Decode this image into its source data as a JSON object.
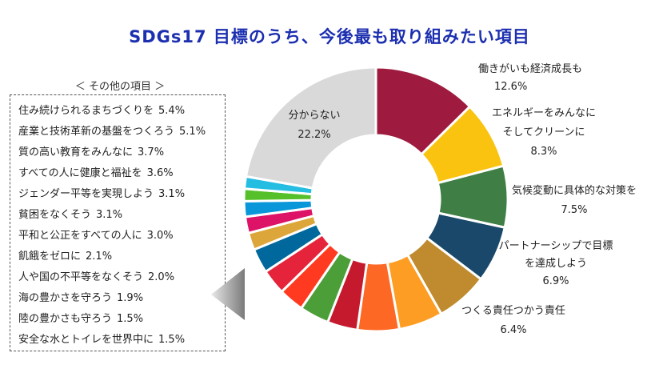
{
  "chart_data": {
    "type": "pie",
    "title": "SDGs17 目標のうち、今後最も取り組みたい項目",
    "slices": [
      {
        "label": "働きがいも経済成長も",
        "value": 12.6,
        "display": "12.6%",
        "color": "#9e1b3f"
      },
      {
        "label": "エネルギーをみんなに そしてクリーンに",
        "value": 8.3,
        "display": "8.3%",
        "color": "#f9c30f"
      },
      {
        "label": "気候変動に具体的な対策を",
        "value": 7.5,
        "display": "7.5%",
        "color": "#3f7e44"
      },
      {
        "label": "パートナーシップで目標を達成しよう",
        "value": 6.9,
        "display": "6.9%",
        "color": "#19486a"
      },
      {
        "label": "つくる責任つかう責任",
        "value": 6.4,
        "display": "6.4%",
        "color": "#bf8b2e"
      },
      {
        "label": "住み続けられるまちづくりを",
        "value": 5.4,
        "display": "5.4%",
        "color": "#fd9d24"
      },
      {
        "label": "産業と技術革新の基盤をつくろう",
        "value": 5.1,
        "display": "5.1%",
        "color": "#fd6925"
      },
      {
        "label": "質の高い教育をみんなに",
        "value": 3.7,
        "display": "3.7%",
        "color": "#c5192d"
      },
      {
        "label": "すべての人に健康と福祉を",
        "value": 3.6,
        "display": "3.6%",
        "color": "#4c9f38"
      },
      {
        "label": "ジェンダー平等を実現しよう",
        "value": 3.1,
        "display": "3.1%",
        "color": "#ff3a21"
      },
      {
        "label": "貧困をなくそう",
        "value": 3.1,
        "display": "3.1%",
        "color": "#e5243b"
      },
      {
        "label": "平和と公正をすべての人に",
        "value": 3.0,
        "display": "3.0%",
        "color": "#00689d"
      },
      {
        "label": "飢餓をゼロに",
        "value": 2.1,
        "display": "2.1%",
        "color": "#dda63a"
      },
      {
        "label": "人や国の不平等をなくそう",
        "value": 2.0,
        "display": "2.0%",
        "color": "#dd1367"
      },
      {
        "label": "海の豊かさを守ろう",
        "value": 1.9,
        "display": "1.9%",
        "color": "#0a97d9"
      },
      {
        "label": "陸の豊かさも守ろう",
        "value": 1.5,
        "display": "1.5%",
        "color": "#56c02b"
      },
      {
        "label": "安全な水とトイレを世界中に",
        "value": 1.5,
        "display": "1.5%",
        "color": "#26bde2"
      },
      {
        "label": "分からない",
        "value": 22.2,
        "display": "22.2%",
        "color": "#d9d9d9"
      }
    ],
    "outer_labels": [
      {
        "lines": [
          "働きがいも経済成長も",
          "12.6%"
        ]
      },
      {
        "lines": [
          "エネルギーをみんなに",
          "そしてクリーンに",
          "8.3%"
        ]
      },
      {
        "lines": [
          "気候変動に具体的な対策を",
          "7.5%"
        ]
      },
      {
        "lines": [
          "パートナーシップで目標",
          "を達成しよう",
          "6.9%"
        ]
      },
      {
        "lines": [
          "つくる責任つかう責任",
          "6.4%"
        ]
      }
    ],
    "inner_label": {
      "lines": [
        "分からない",
        "22.2%"
      ]
    }
  },
  "others": {
    "heading": "＜ その他の項目 ＞",
    "items": [
      {
        "label": "住み続けられるまちづくりを",
        "value": "5.4%"
      },
      {
        "label": "産業と技術革新の基盤をつくろう",
        "value": "5.1%"
      },
      {
        "label": "質の高い教育をみんなに",
        "value": "3.7%"
      },
      {
        "label": "すべての人に健康と福祉を",
        "value": "3.6%"
      },
      {
        "label": "ジェンダー平等を実現しよう",
        "value": "3.1%"
      },
      {
        "label": "貧困をなくそう",
        "value": "3.1%"
      },
      {
        "label": "平和と公正をすべての人に",
        "value": "3.0%"
      },
      {
        "label": "飢餓をゼロに",
        "value": "2.1%"
      },
      {
        "label": "人や国の不平等をなくそう",
        "value": "2.0%"
      },
      {
        "label": "海の豊かさを守ろう",
        "value": "1.9%"
      },
      {
        "label": "陸の豊かさも守ろう",
        "value": "1.5%"
      },
      {
        "label": "安全な水とトイレを世界中に",
        "value": "1.5%"
      }
    ]
  }
}
